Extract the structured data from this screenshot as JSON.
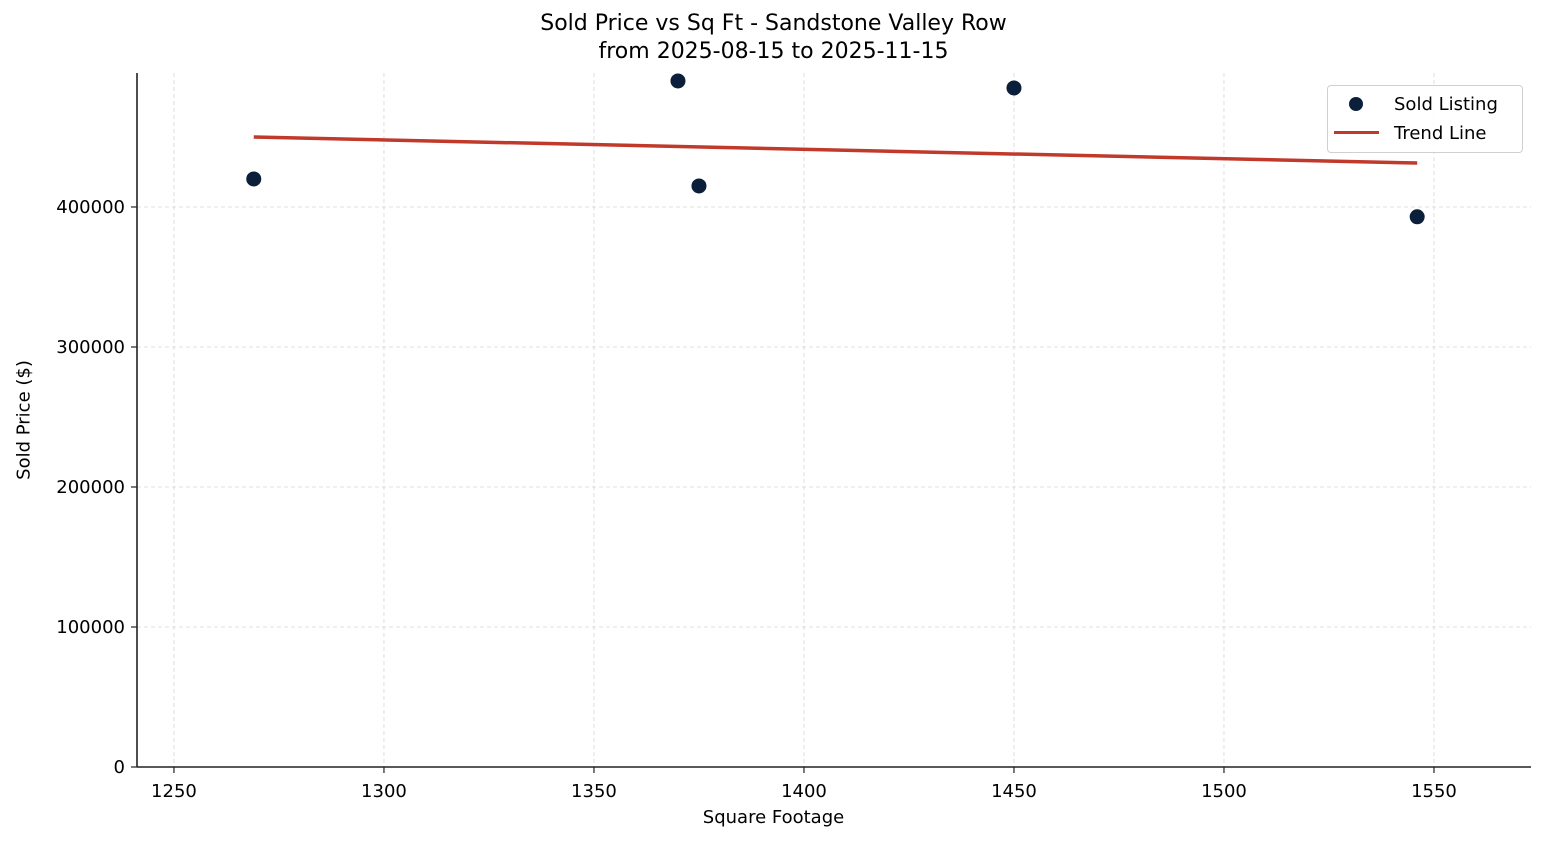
{
  "chart_data": {
    "type": "scatter",
    "title": "Sold Price vs Sq Ft - Sandstone Valley Row",
    "subtitle": "from 2025-08-15 to 2025-11-15",
    "xlabel": "Square Footage",
    "ylabel": "Sold Price ($)",
    "xlim": [
      1241.2,
      1573.1
    ],
    "ylim": [
      0,
      495700
    ],
    "xticks": [
      1250,
      1300,
      1350,
      1400,
      1450,
      1500,
      1550
    ],
    "yticks": [
      0,
      100000,
      200000,
      300000,
      400000
    ],
    "xtick_labels": [
      "1250",
      "1300",
      "1350",
      "1400",
      "1450",
      "1500",
      "1550"
    ],
    "ytick_labels": [
      "0",
      "100000",
      "200000",
      "300000",
      "400000"
    ],
    "grid": true,
    "legend_position": "upper right",
    "series": [
      {
        "name": "Sold Listing",
        "kind": "scatter",
        "color": "#0b1f3a",
        "x": [
          1269,
          1370,
          1375,
          1450,
          1546
        ],
        "y": [
          420000,
          490000,
          415000,
          485000,
          393000
        ]
      },
      {
        "name": "Trend Line",
        "kind": "line",
        "color": "#c0392b",
        "x": [
          1269,
          1546
        ],
        "y": [
          450000,
          431400
        ]
      }
    ]
  },
  "legend": {
    "items": [
      {
        "label": "Sold Listing"
      },
      {
        "label": "Trend Line"
      }
    ]
  }
}
